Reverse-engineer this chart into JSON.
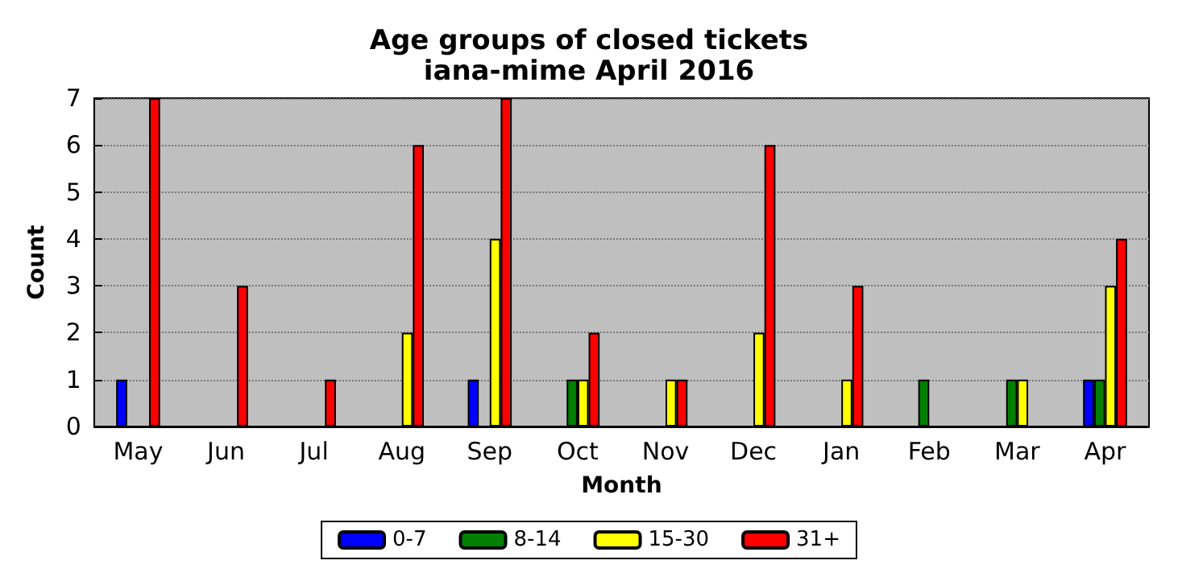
{
  "chart_data": {
    "type": "bar",
    "title": "Age groups of closed tickets",
    "subtitle": "iana-mime April 2016",
    "xlabel": "Month",
    "ylabel": "Count",
    "categories": [
      "May",
      "Jun",
      "Jul",
      "Aug",
      "Sep",
      "Oct",
      "Nov",
      "Dec",
      "Jan",
      "Feb",
      "Mar",
      "Apr"
    ],
    "series": [
      {
        "name": "0-7",
        "color": "#0000ff",
        "values": [
          1,
          0,
          0,
          0,
          1,
          0,
          0,
          0,
          0,
          0,
          0,
          1
        ]
      },
      {
        "name": "8-14",
        "color": "#008000",
        "values": [
          0,
          0,
          0,
          0,
          0,
          1,
          0,
          0,
          0,
          1,
          1,
          1
        ]
      },
      {
        "name": "15-30",
        "color": "#ffff00",
        "values": [
          0,
          0,
          0,
          2,
          4,
          1,
          1,
          2,
          1,
          0,
          1,
          3
        ]
      },
      {
        "name": "31+",
        "color": "#ff0000",
        "values": [
          7,
          3,
          1,
          6,
          7,
          2,
          1,
          6,
          3,
          0,
          0,
          4
        ]
      }
    ],
    "ylim": [
      0,
      7
    ],
    "yticks": [
      0,
      1,
      2,
      3,
      4,
      5,
      6,
      7
    ],
    "grid": "y",
    "legend": "bottom"
  }
}
